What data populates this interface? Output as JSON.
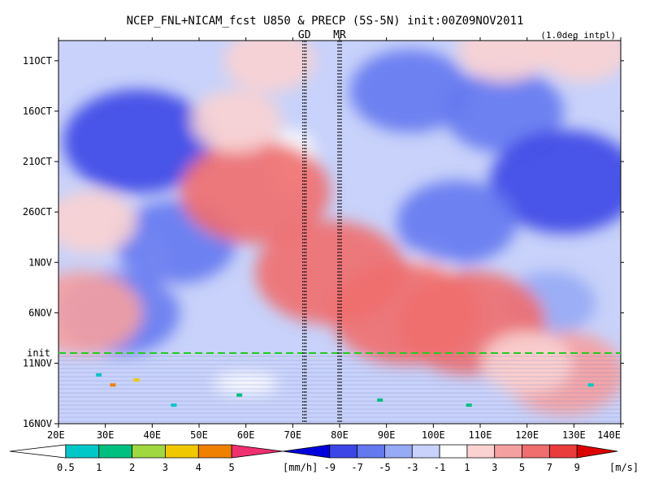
{
  "chart_data": {
    "type": "heatmap",
    "title": "NCEP_FNL+NICAM_fcst U850 & PRECP (5S-5N) init:00Z09NOV2011",
    "subtitle": "(1.0deg intpl)",
    "x_ticks": [
      "20E",
      "30E",
      "40E",
      "50E",
      "60E",
      "70E",
      "80E",
      "90E",
      "100E",
      "110E",
      "120E",
      "130E",
      "140E"
    ],
    "x_range": [
      20,
      140
    ],
    "y_ticks": [
      "11OCT",
      "16OCT",
      "21OCT",
      "26OCT",
      "1NOV",
      "6NOV",
      "11NOV",
      "16NOV"
    ],
    "y_range": [
      "9OCT2011",
      "16NOV2011"
    ],
    "init_label": "init",
    "init_day": 31,
    "markers": [
      {
        "label": "GD",
        "lon": 72.5
      },
      {
        "label": "MR",
        "lon": 80
      }
    ],
    "precip_colorbar": {
      "labels": [
        "0.5",
        "1",
        "2",
        "3",
        "4",
        "5"
      ],
      "unit": "[mm/h]",
      "colors": [
        "#ffffff",
        "#00c8c8",
        "#00c080",
        "#a0d840",
        "#f0c800",
        "#f08000",
        "#f03070"
      ]
    },
    "wind_colorbar": {
      "labels": [
        "-9",
        "-7",
        "-5",
        "-3",
        "-1",
        "1",
        "3",
        "5",
        "7",
        "9"
      ],
      "unit": "[m/s]",
      "colors": [
        "#0000dc",
        "#3c46e6",
        "#6478f0",
        "#96aaf5",
        "#c8d2fa",
        "#ffffff",
        "#fad2d2",
        "#f5a0a0",
        "#f06e6e",
        "#eb3c3c",
        "#dc0000"
      ]
    },
    "u850_blobs": [
      {
        "lon": 37,
        "day": 10,
        "value": -7
      },
      {
        "lon": 33,
        "day": 27,
        "value": -5
      },
      {
        "lon": 45,
        "day": 20,
        "value": -5
      },
      {
        "lon": 115,
        "day": 7,
        "value": -5
      },
      {
        "lon": 128,
        "day": 14,
        "value": -7
      },
      {
        "lon": 105,
        "day": 18,
        "value": -5
      },
      {
        "lon": 95,
        "day": 5,
        "value": -5
      },
      {
        "lon": 125,
        "day": 26,
        "value": -3
      },
      {
        "lon": 62,
        "day": 15,
        "value": 7
      },
      {
        "lon": 58,
        "day": 8,
        "value": 3
      },
      {
        "lon": 78,
        "day": 23,
        "value": 7
      },
      {
        "lon": 94,
        "day": 27,
        "value": 7
      },
      {
        "lon": 108,
        "day": 28,
        "value": 7
      },
      {
        "lon": 128,
        "day": 33,
        "value": 5
      },
      {
        "lon": 27,
        "day": 18,
        "value": 3
      },
      {
        "lon": 25,
        "day": 27,
        "value": 5
      },
      {
        "lon": 120,
        "day": 32,
        "value": 3
      },
      {
        "lon": 65,
        "day": 2,
        "value": 3
      },
      {
        "lon": 115,
        "day": 1,
        "value": 3
      },
      {
        "lon": 132,
        "day": 1,
        "value": 3
      }
    ]
  }
}
